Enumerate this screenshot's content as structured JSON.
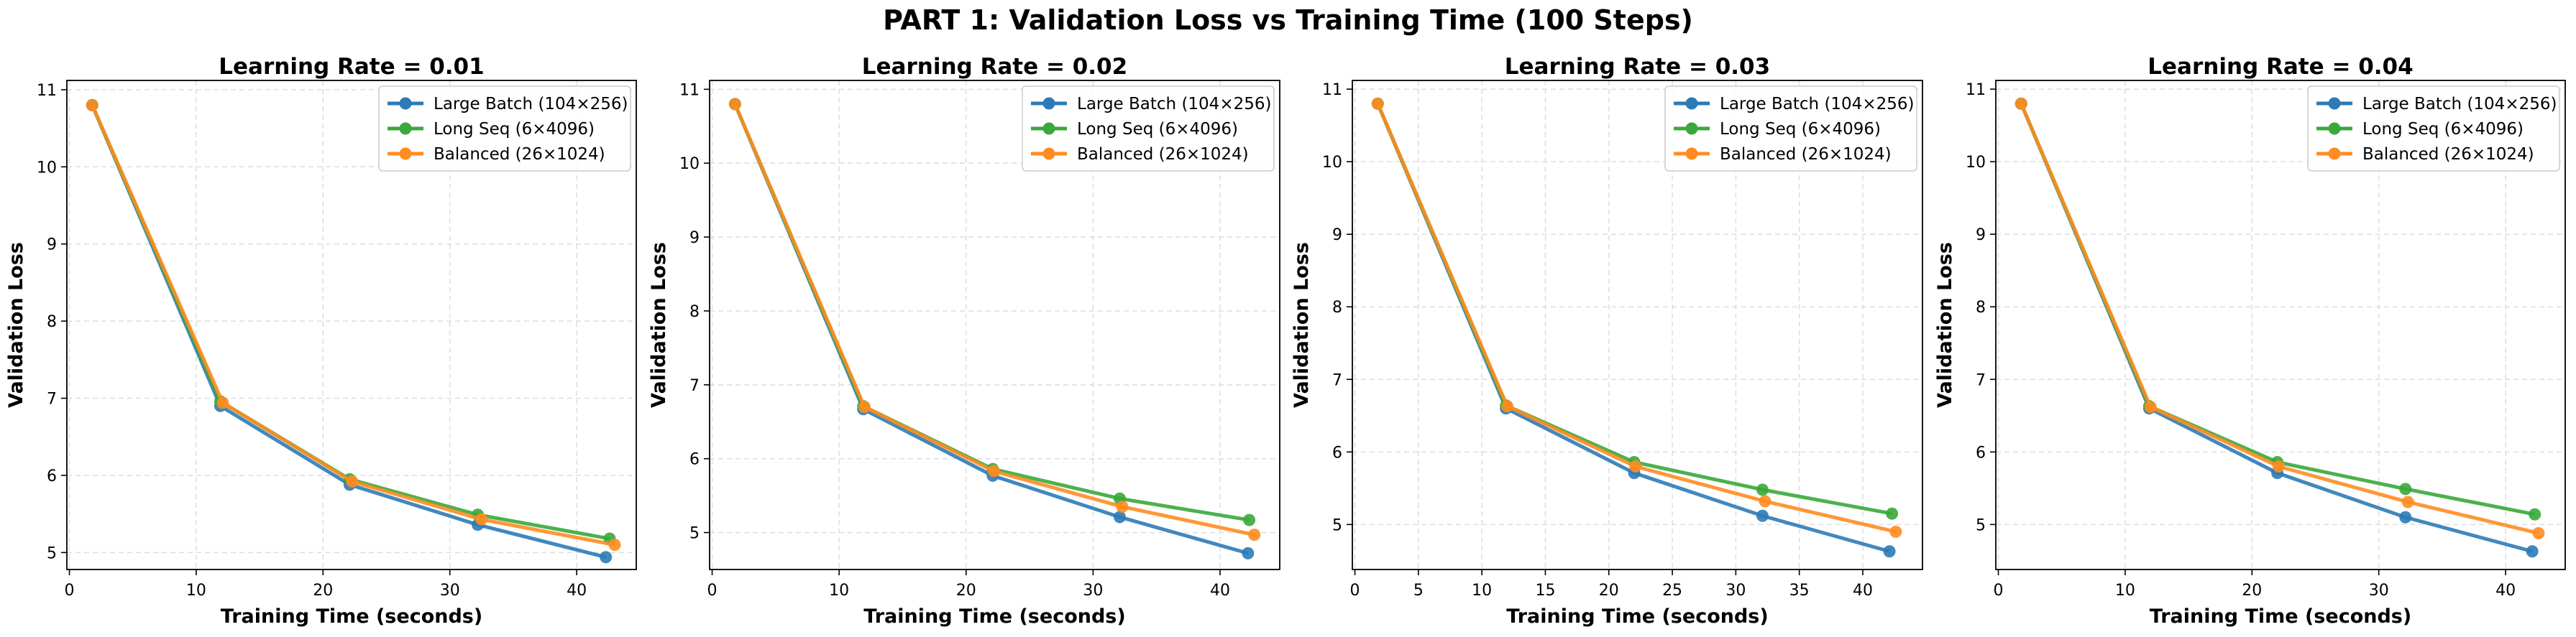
{
  "figure_title": "PART 1: Validation Loss vs Training Time (100 Steps)",
  "colors": {
    "large_batch": "#2c7bb6",
    "long_seq": "#3aa83a",
    "balanced": "#ff8c21",
    "grid": "#dddddd"
  },
  "chart_data": [
    {
      "type": "line",
      "title": "Learning Rate = 0.01",
      "xlabel": "Training Time (seconds)",
      "ylabel": "Validation Loss",
      "xlim": [
        -0.2,
        44.7
      ],
      "ylim": [
        4.78,
        11.12
      ],
      "xticks": [
        0,
        10,
        20,
        30,
        40
      ],
      "yticks": [
        5,
        6,
        7,
        8,
        9,
        10,
        11
      ],
      "grid": true,
      "legend_position": "top-right",
      "series": [
        {
          "name": "Large Batch (104×256)",
          "color": "#2c7bb6",
          "x": [
            1.8,
            11.9,
            22.1,
            32.2,
            42.3
          ],
          "y": [
            10.8,
            6.9,
            5.88,
            5.36,
            4.94
          ]
        },
        {
          "name": "Long Seq (6×4096)",
          "color": "#3aa83a",
          "x": [
            1.8,
            11.9,
            22.1,
            32.2,
            42.6
          ],
          "y": [
            10.8,
            6.96,
            5.95,
            5.49,
            5.18
          ]
        },
        {
          "name": "Balanced (26×1024)",
          "color": "#ff8c21",
          "x": [
            1.8,
            12.1,
            22.3,
            32.5,
            43.0
          ],
          "y": [
            10.8,
            6.94,
            5.92,
            5.43,
            5.1
          ]
        }
      ]
    },
    {
      "type": "line",
      "title": "Learning Rate = 0.02",
      "xlabel": "Training Time (seconds)",
      "ylabel": "Validation Loss",
      "xlim": [
        -0.2,
        44.7
      ],
      "ylim": [
        4.5,
        11.12
      ],
      "xticks": [
        0,
        10,
        20,
        30,
        40
      ],
      "yticks": [
        5,
        6,
        7,
        8,
        9,
        10,
        11
      ],
      "grid": true,
      "legend_position": "top-right",
      "series": [
        {
          "name": "Large Batch (104×256)",
          "color": "#2c7bb6",
          "x": [
            1.8,
            11.9,
            22.1,
            32.1,
            42.2
          ],
          "y": [
            10.8,
            6.67,
            5.77,
            5.21,
            4.72
          ]
        },
        {
          "name": "Long Seq (6×4096)",
          "color": "#3aa83a",
          "x": [
            1.8,
            11.9,
            22.1,
            32.1,
            42.3
          ],
          "y": [
            10.8,
            6.71,
            5.86,
            5.46,
            5.17
          ]
        },
        {
          "name": "Balanced (26×1024)",
          "color": "#ff8c21",
          "x": [
            1.8,
            12.0,
            22.2,
            32.3,
            42.7
          ],
          "y": [
            10.8,
            6.7,
            5.83,
            5.35,
            4.97
          ]
        }
      ]
    },
    {
      "type": "line",
      "title": "Learning Rate = 0.03",
      "xlabel": "Training Time (seconds)",
      "ylabel": "Validation Loss",
      "xlim": [
        -0.2,
        44.7
      ],
      "ylim": [
        4.38,
        11.12
      ],
      "xticks": [
        0,
        5,
        10,
        15,
        20,
        25,
        30,
        35,
        40
      ],
      "yticks": [
        5,
        6,
        7,
        8,
        9,
        10,
        11
      ],
      "grid": true,
      "legend_position": "top-right",
      "series": [
        {
          "name": "Large Batch (104×256)",
          "color": "#2c7bb6",
          "x": [
            1.8,
            11.9,
            22.0,
            32.1,
            42.1
          ],
          "y": [
            10.8,
            6.6,
            5.71,
            5.12,
            4.63
          ]
        },
        {
          "name": "Long Seq (6×4096)",
          "color": "#3aa83a",
          "x": [
            1.8,
            11.9,
            22.0,
            32.1,
            42.3
          ],
          "y": [
            10.8,
            6.64,
            5.86,
            5.48,
            5.15
          ]
        },
        {
          "name": "Balanced (26×1024)",
          "color": "#ff8c21",
          "x": [
            1.8,
            12.0,
            22.1,
            32.3,
            42.6
          ],
          "y": [
            10.8,
            6.63,
            5.8,
            5.32,
            4.9
          ]
        }
      ]
    },
    {
      "type": "line",
      "title": "Learning Rate = 0.04",
      "xlabel": "Training Time (seconds)",
      "ylabel": "Validation Loss",
      "xlim": [
        -0.2,
        44.7
      ],
      "ylim": [
        4.38,
        11.12
      ],
      "xticks": [
        0,
        10,
        20,
        30,
        40
      ],
      "yticks": [
        5,
        6,
        7,
        8,
        9,
        10,
        11
      ],
      "grid": true,
      "legend_position": "top-right",
      "series": [
        {
          "name": "Large Batch (104×256)",
          "color": "#2c7bb6",
          "x": [
            1.8,
            11.9,
            22.0,
            32.1,
            42.1
          ],
          "y": [
            10.8,
            6.6,
            5.71,
            5.1,
            4.63
          ]
        },
        {
          "name": "Long Seq (6×4096)",
          "color": "#3aa83a",
          "x": [
            1.8,
            11.9,
            22.0,
            32.1,
            42.3
          ],
          "y": [
            10.8,
            6.63,
            5.86,
            5.49,
            5.14
          ]
        },
        {
          "name": "Balanced (26×1024)",
          "color": "#ff8c21",
          "x": [
            1.8,
            12.0,
            22.1,
            32.3,
            42.6
          ],
          "y": [
            10.8,
            6.62,
            5.8,
            5.31,
            4.88
          ]
        }
      ]
    }
  ]
}
